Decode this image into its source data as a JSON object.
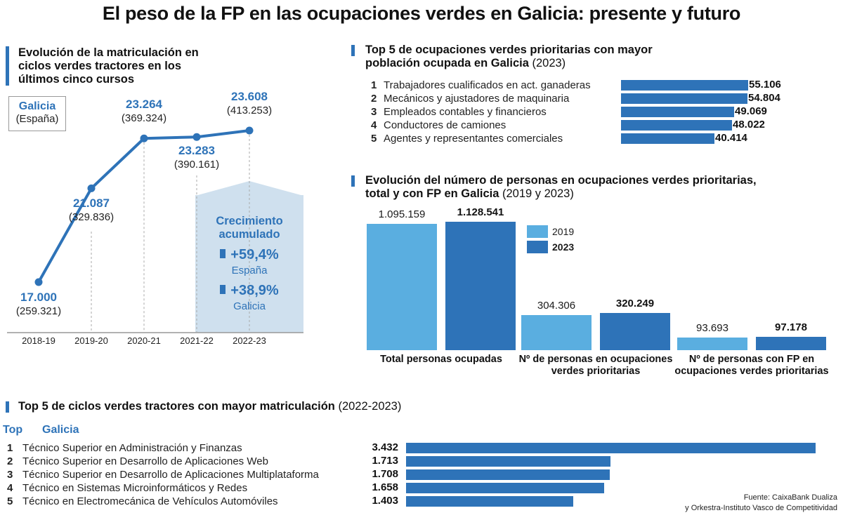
{
  "title": "El peso de la FP en las ocupaciones verdes en Galicia: presente y futuro",
  "colors": {
    "accent": "#2e73b8",
    "light_blue": "#5aaee0",
    "growth_box": "#cfe0ee"
  },
  "enrollment": {
    "title": "Evolución de la matriculación en ciclos verdes tractores en los últimos cinco cursos",
    "legend_galicia": "Galicia",
    "legend_spain": "(España)",
    "growth": {
      "title": "Crecimiento acumulado",
      "spain_value": "+59,4%",
      "spain_label": "España",
      "galicia_value": "+38,9%",
      "galicia_label": "Galicia"
    }
  },
  "top5_occupations": {
    "title": "Top 5 de ocupaciones verdes prioritarias con mayor población ocupada en Galicia",
    "year": "(2023)"
  },
  "people_chart": {
    "title": "Evolución del número de personas en ocupaciones verdes prioritarias, total y con FP en Galicia",
    "years": "(2019 y 2023)"
  },
  "top5_cycles": {
    "title": "Top 5 de ciclos verdes tractores con mayor matriculación",
    "years": "(2022-2023)",
    "col_top": "Top",
    "col_galicia": "Galicia"
  },
  "source": {
    "line1": "Fuente: CaixaBank Dualiza",
    "line2": "y Orkestra-Instituto Vasco de Competitividad"
  },
  "chart_data": [
    {
      "type": "line",
      "x": [
        "2018-19",
        "2019-20",
        "2020-21",
        "2021-22",
        "2022-23"
      ],
      "series": [
        {
          "name": "Galicia",
          "values": [
            17000,
            21087,
            23264,
            23283,
            23608
          ],
          "labels": [
            "17.000",
            "21.087",
            "23.264",
            "23.283",
            "23.608"
          ]
        },
        {
          "name": "España",
          "values": [
            259321,
            329836,
            369324,
            390161,
            413253
          ],
          "labels": [
            "(259.321)",
            "(329.836)",
            "(369.324)",
            "(390.161)",
            "(413.253)"
          ]
        }
      ]
    },
    {
      "type": "bar",
      "orientation": "horizontal",
      "categories": [
        "Trabajadores cualificados en act. ganaderas",
        "Mecánicos y ajustadores de maquinaria",
        "Empleados contables y financieros",
        "Conductores de camiones",
        "Agentes y representantes comerciales"
      ],
      "ranks": [
        "1",
        "2",
        "3",
        "4",
        "5"
      ],
      "values": [
        55106,
        54804,
        49069,
        48022,
        40414
      ],
      "labels": [
        "55.106",
        "54.804",
        "49.069",
        "48.022",
        "40.414"
      ]
    },
    {
      "type": "bar",
      "categories": [
        "Total personas ocupadas",
        "Nº de personas en ocupaciones verdes prioritarias",
        "Nº de personas con FP en ocupaciones verdes prioritarias"
      ],
      "series": [
        {
          "name": "2019",
          "color": "#5aaee0",
          "values": [
            1095159,
            304306,
            93693
          ],
          "labels": [
            "1.095.159",
            "304.306",
            "93.693"
          ]
        },
        {
          "name": "2023",
          "color": "#2e73b8",
          "values": [
            1128541,
            320249,
            97178
          ],
          "labels": [
            "1.128.541",
            "320.249",
            "97.178"
          ]
        }
      ]
    },
    {
      "type": "bar",
      "orientation": "horizontal",
      "categories": [
        "Técnico Superior en Administración y Finanzas",
        "Técnico Superior en Desarrollo de Aplicaciones Web",
        "Técnico Superior en Desarrollo de Aplicaciones Multiplataforma",
        "Técnico en Sistemas Microinformáticos y Redes",
        "Técnico en Electromecánica de Vehículos Automóviles"
      ],
      "ranks": [
        "1",
        "2",
        "3",
        "4",
        "5"
      ],
      "values": [
        3432,
        1713,
        1708,
        1658,
        1403
      ],
      "labels": [
        "3.432",
        "1.713",
        "1.708",
        "1.658",
        "1.403"
      ]
    }
  ]
}
